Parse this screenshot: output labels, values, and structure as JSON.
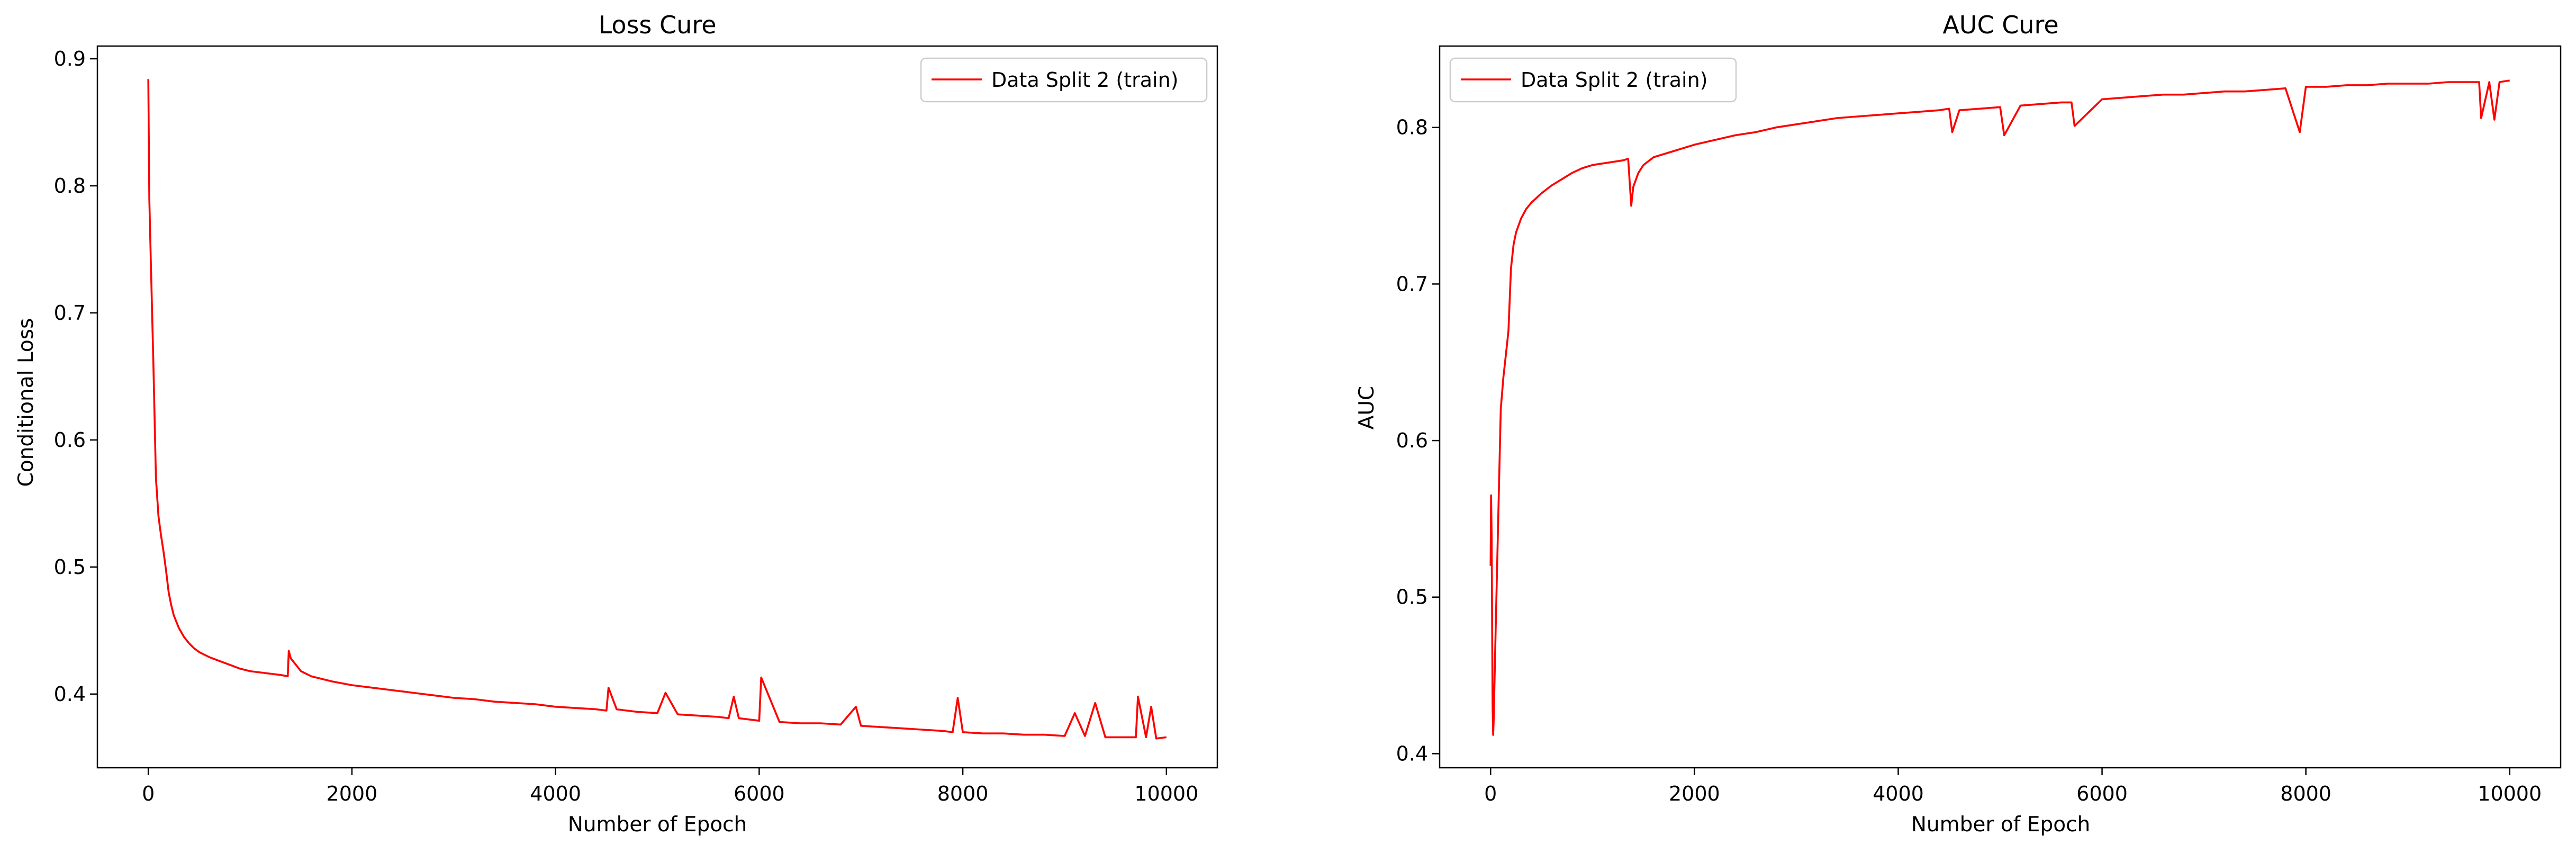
{
  "chart_data": [
    {
      "type": "line",
      "title": "Loss Cure",
      "xlabel": "Number of Epoch",
      "ylabel": "Conditional Loss",
      "xlim": [
        -500,
        10500
      ],
      "ylim": [
        0.342,
        0.91
      ],
      "xticks": [
        0,
        2000,
        4000,
        6000,
        8000,
        10000
      ],
      "yticks": [
        0.4,
        0.5,
        0.6,
        0.7,
        0.8,
        0.9
      ],
      "legend_position": "upper-right",
      "grid": false,
      "series": [
        {
          "name": "Data Split 2 (train)",
          "color": "#ff0000",
          "x": [
            0,
            10,
            25,
            50,
            75,
            100,
            125,
            150,
            175,
            200,
            225,
            250,
            300,
            350,
            400,
            450,
            500,
            600,
            700,
            800,
            900,
            1000,
            1100,
            1200,
            1300,
            1370,
            1380,
            1400,
            1450,
            1500,
            1600,
            1700,
            1800,
            2000,
            2200,
            2400,
            2600,
            2800,
            3000,
            3200,
            3400,
            3600,
            3800,
            4000,
            4200,
            4400,
            4500,
            4520,
            4600,
            4800,
            5000,
            5080,
            5200,
            5400,
            5600,
            5700,
            5750,
            5800,
            6000,
            6020,
            6200,
            6400,
            6600,
            6800,
            6950,
            7000,
            7200,
            7400,
            7600,
            7800,
            7900,
            7950,
            8000,
            8200,
            8400,
            8600,
            8800,
            9000,
            9100,
            9200,
            9300,
            9400,
            9600,
            9700,
            9720,
            9800,
            9850,
            9900,
            10000
          ],
          "y": [
            0.884,
            0.79,
            0.74,
            0.66,
            0.57,
            0.54,
            0.525,
            0.512,
            0.497,
            0.48,
            0.47,
            0.462,
            0.452,
            0.445,
            0.44,
            0.436,
            0.433,
            0.429,
            0.426,
            0.423,
            0.42,
            0.418,
            0.417,
            0.416,
            0.415,
            0.414,
            0.434,
            0.428,
            0.423,
            0.418,
            0.414,
            0.412,
            0.41,
            0.407,
            0.405,
            0.403,
            0.401,
            0.399,
            0.397,
            0.396,
            0.394,
            0.393,
            0.392,
            0.39,
            0.389,
            0.388,
            0.387,
            0.405,
            0.388,
            0.386,
            0.385,
            0.401,
            0.384,
            0.383,
            0.382,
            0.381,
            0.398,
            0.381,
            0.379,
            0.413,
            0.378,
            0.377,
            0.377,
            0.376,
            0.39,
            0.375,
            0.374,
            0.373,
            0.372,
            0.371,
            0.37,
            0.397,
            0.37,
            0.369,
            0.369,
            0.368,
            0.368,
            0.367,
            0.385,
            0.367,
            0.393,
            0.366,
            0.366,
            0.366,
            0.398,
            0.366,
            0.39,
            0.365,
            0.366
          ]
        }
      ]
    },
    {
      "type": "line",
      "title": "AUC Cure",
      "xlabel": "Number of Epoch",
      "ylabel": "AUC",
      "xlim": [
        -500,
        10500
      ],
      "ylim": [
        0.391,
        0.852
      ],
      "xticks": [
        0,
        2000,
        4000,
        6000,
        8000,
        10000
      ],
      "yticks": [
        0.4,
        0.5,
        0.6,
        0.7,
        0.8
      ],
      "legend_position": "upper-left",
      "grid": false,
      "series": [
        {
          "name": "Data Split 2 (train)",
          "color": "#ff0000",
          "x": [
            0,
            5,
            10,
            20,
            25,
            30,
            50,
            75,
            100,
            125,
            150,
            175,
            200,
            225,
            250,
            300,
            350,
            400,
            500,
            600,
            700,
            800,
            900,
            1000,
            1100,
            1200,
            1300,
            1350,
            1380,
            1400,
            1450,
            1500,
            1600,
            1800,
            2000,
            2200,
            2400,
            2600,
            2800,
            3000,
            3200,
            3400,
            3600,
            3800,
            4000,
            4200,
            4400,
            4500,
            4530,
            4600,
            4800,
            5000,
            5040,
            5200,
            5400,
            5600,
            5700,
            5730,
            6000,
            6200,
            6400,
            6600,
            6800,
            7000,
            7200,
            7400,
            7600,
            7800,
            7940,
            8000,
            8200,
            8400,
            8600,
            8800,
            9000,
            9200,
            9400,
            9600,
            9700,
            9720,
            9800,
            9850,
            9900,
            10000
          ],
          "y": [
            0.52,
            0.565,
            0.54,
            0.43,
            0.412,
            0.42,
            0.48,
            0.55,
            0.62,
            0.64,
            0.655,
            0.67,
            0.71,
            0.725,
            0.733,
            0.742,
            0.748,
            0.752,
            0.758,
            0.763,
            0.767,
            0.771,
            0.774,
            0.776,
            0.777,
            0.778,
            0.779,
            0.78,
            0.75,
            0.762,
            0.771,
            0.776,
            0.781,
            0.785,
            0.789,
            0.792,
            0.795,
            0.797,
            0.8,
            0.802,
            0.804,
            0.806,
            0.807,
            0.808,
            0.809,
            0.81,
            0.811,
            0.812,
            0.797,
            0.811,
            0.812,
            0.813,
            0.795,
            0.814,
            0.815,
            0.816,
            0.816,
            0.801,
            0.818,
            0.819,
            0.82,
            0.821,
            0.821,
            0.822,
            0.823,
            0.823,
            0.824,
            0.825,
            0.797,
            0.826,
            0.826,
            0.827,
            0.827,
            0.828,
            0.828,
            0.828,
            0.829,
            0.829,
            0.829,
            0.806,
            0.829,
            0.805,
            0.829,
            0.83
          ]
        }
      ]
    }
  ]
}
